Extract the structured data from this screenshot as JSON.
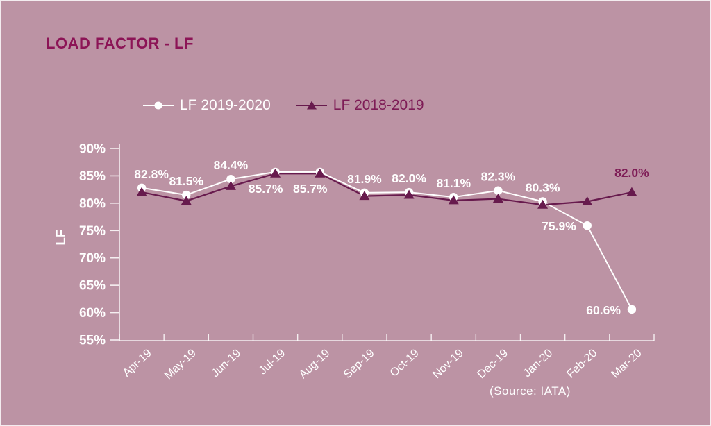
{
  "title": "LOAD FACTOR - LF",
  "source": "(Source: IATA)",
  "colors": {
    "background": "#BC93A4",
    "title": "#8C1456",
    "axis": "rgba(255,255,255,0.85)",
    "tick_text": "#FFFFFF",
    "series_lf_2019_2020": "#FFFFFF",
    "series_lf_2018_2019": "#671A4D",
    "dark_label": "#7E1C56"
  },
  "chart_data": {
    "type": "line",
    "title": "LOAD FACTOR - LF",
    "xlabel": "",
    "ylabel": "LF",
    "ylim": [
      55,
      90
    ],
    "grid": false,
    "legend_position": "top",
    "categories": [
      "Apr-19",
      "May-19",
      "Jun-19",
      "Jul-19",
      "Aug-19",
      "Sep-19",
      "Oct-19",
      "Nov-19",
      "Dec-19",
      "Jan-20",
      "Feb-20",
      "Mar-20"
    ],
    "y_tick_values": [
      90,
      85,
      80,
      75,
      70,
      65,
      60,
      55
    ],
    "y_tick_labels": [
      "90%",
      "85%",
      "80%",
      "75%",
      "70%",
      "65%",
      "60%",
      "55%"
    ],
    "series": [
      {
        "name": "LF 2019-2020",
        "marker": "circle",
        "color": "#FFFFFF",
        "label_color": "#FFFFFF",
        "values": [
          82.8,
          81.5,
          84.4,
          85.7,
          85.7,
          81.9,
          82.0,
          81.1,
          82.3,
          80.3,
          75.9,
          60.6
        ],
        "labels": [
          "82.8%",
          "81.5%",
          "84.4%",
          "85.7%",
          "85.7%",
          "81.9%",
          "82.0%",
          "81.1%",
          "82.3%",
          "80.3%",
          "75.9%",
          "60.6%"
        ],
        "label_placements": [
          "above-right",
          "above",
          "above",
          "below",
          "below",
          "above",
          "above",
          "above",
          "above",
          "above",
          "left",
          "left"
        ]
      },
      {
        "name": "LF 2018-2019",
        "marker": "triangle",
        "color": "#671A4D",
        "label_color": "#7E1C56",
        "values": [
          82.0,
          80.4,
          83.1,
          85.4,
          85.4,
          81.3,
          81.5,
          80.5,
          80.8,
          79.7,
          80.3,
          82.0
        ],
        "labels": [
          null,
          null,
          null,
          null,
          null,
          null,
          null,
          null,
          null,
          null,
          null,
          "82.0%"
        ],
        "label_placements": [
          null,
          null,
          null,
          null,
          null,
          null,
          null,
          null,
          null,
          null,
          null,
          "above-far"
        ]
      }
    ]
  }
}
